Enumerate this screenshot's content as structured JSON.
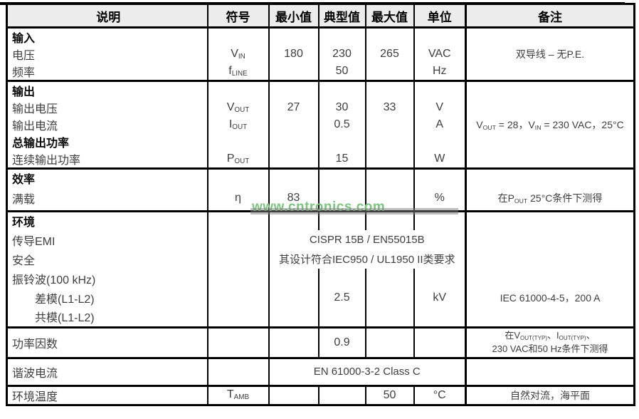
{
  "watermark": {
    "text": "www.cntronics.com",
    "color": "#7cc57f"
  },
  "colors": {
    "header_bg": "#ececec",
    "border": "#000000",
    "body_text": "#3e3e3e"
  },
  "header": {
    "desc": "说明",
    "symbol": "符号",
    "min": "最小值",
    "typ": "典型值",
    "max": "最大值",
    "unit": "单位",
    "note": "备注"
  },
  "input": {
    "section": "输入",
    "voltage": {
      "label": "电压",
      "symbol": [
        {
          "t": "V"
        },
        {
          "t": "IN",
          "sub": true
        }
      ],
      "min": "180",
      "typ": "230",
      "max": "265",
      "unit": "VAC",
      "note": "双导线 – 无P.E."
    },
    "frequency": {
      "label": "频率",
      "symbol": [
        {
          "t": "f"
        },
        {
          "t": "LINE",
          "sub": true
        }
      ],
      "typ": "50",
      "unit": "Hz"
    }
  },
  "output": {
    "section": "输出",
    "voltage": {
      "label": "输出电压",
      "symbol": [
        {
          "t": "V"
        },
        {
          "t": "OUT",
          "sub": true
        }
      ],
      "min": "27",
      "typ": "30",
      "max": "33",
      "unit": "V"
    },
    "current": {
      "label": "输出电流",
      "symbol": [
        {
          "t": "I"
        },
        {
          "t": "OUT",
          "sub": true
        }
      ],
      "typ": "0.5",
      "unit": "A",
      "note": [
        {
          "t": "V"
        },
        {
          "t": "OUT",
          "sub": true
        },
        {
          "t": " = 28，V"
        },
        {
          "t": "IN",
          "sub": true
        },
        {
          "t": " = 230 VAC，25°C"
        }
      ]
    },
    "total_power_section": "总输出功率",
    "continuous_power": {
      "label": "连续输出功率",
      "symbol": [
        {
          "t": "P"
        },
        {
          "t": "OUT",
          "sub": true
        }
      ],
      "typ": "15",
      "unit": "W"
    }
  },
  "efficiency": {
    "section": "效率",
    "full_load": {
      "label": "满载",
      "symbol": "η",
      "min": "83",
      "unit": "%",
      "note": [
        {
          "t": "在P"
        },
        {
          "t": "OUT",
          "sub": true
        },
        {
          "t": " 25°C条件下测得"
        }
      ]
    }
  },
  "environment": {
    "section": "环境",
    "conducted_emi": {
      "label": "传导EMI",
      "value": "CISPR 15B / EN55015B"
    },
    "safety": {
      "label": "安全",
      "value": "其设计符合IEC950 / UL1950 II类要求"
    },
    "ring_wave": {
      "label": "振铃波(100 kHz)"
    },
    "differential_mode": {
      "label": "差模(L1-L2)",
      "typ": "2.5",
      "unit": "kV",
      "note": "IEC 61000-4-5，200 A"
    },
    "common_mode": {
      "label": "共模(L1-L2)"
    }
  },
  "power_factor": {
    "label": "功率因数",
    "typ": "0.9",
    "note": [
      {
        "t": "在V"
      },
      {
        "t": "OUT(TYP)",
        "sub": true
      },
      {
        "t": "、I"
      },
      {
        "t": "OUT(TYP)",
        "sub": true
      },
      {
        "t": "、"
      },
      {
        "br": true
      },
      {
        "t": "230 VAC和50 Hz条件下测得"
      }
    ]
  },
  "harmonic_current": {
    "label": "谐波电流",
    "value": "EN 61000-3-2 Class C"
  },
  "ambient_temperature": {
    "label": "环境温度",
    "symbol": [
      {
        "t": "T"
      },
      {
        "t": "AMB",
        "sub": true
      }
    ],
    "max": "50",
    "unit": "°C",
    "note": "自然对流，海平面"
  }
}
